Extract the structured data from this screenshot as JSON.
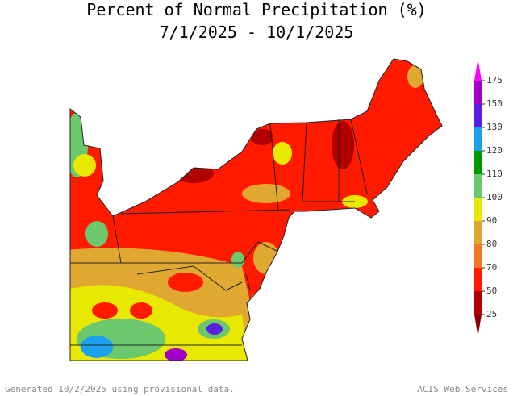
{
  "title": "Percent of Normal Precipitation (%)",
  "subtitle": "7/1/2025 - 10/1/2025",
  "legend": {
    "ticks": [
      25,
      50,
      70,
      80,
      90,
      100,
      110,
      120,
      130,
      150,
      175
    ],
    "below_color": "#8b0000",
    "colors": [
      "#b00000",
      "#ff1a00",
      "#f07828",
      "#e0a830",
      "#e8e800",
      "#6cc86c",
      "#009a00",
      "#1ca0f0",
      "#5a1ee0",
      "#a000c8"
    ],
    "above_color": "#ff00ff"
  },
  "footer": {
    "left": "Generated 10/2/2025 using provisional data.",
    "right": "ACIS Web Services"
  }
}
